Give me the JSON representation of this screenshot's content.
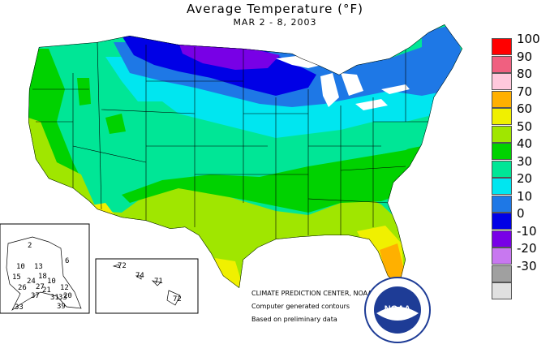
{
  "title": "Average Temperature (°F)",
  "subtitle": "MAR 2 - 8, 2003",
  "legend": [
    {
      "label": "100",
      "color": "#ff0000"
    },
    {
      "label": "90",
      "color": "#f06080"
    },
    {
      "label": "80",
      "color": "#ffc8dc"
    },
    {
      "label": "70",
      "color": "#ffb000"
    },
    {
      "label": "60",
      "color": "#f0f000"
    },
    {
      "label": "50",
      "color": "#a0e600"
    },
    {
      "label": "40",
      "color": "#00d200"
    },
    {
      "label": "30",
      "color": "#00e696"
    },
    {
      "label": "20",
      "color": "#00e6f0"
    },
    {
      "label": "10",
      "color": "#1e78e6"
    },
    {
      "label": "0",
      "color": "#0000e6"
    },
    {
      "label": "-10",
      "color": "#7800e6"
    },
    {
      "label": "-20",
      "color": "#c878f0"
    },
    {
      "label": "-30",
      "color": "#a0a0a0"
    },
    {
      "label": "",
      "color": "#e0e0e0"
    }
  ],
  "credits": {
    "line1": "CLIMATE PREDICTION CENTER, NOAA",
    "line2": "Computer generated contours",
    "line3": "Based on preliminary data"
  },
  "logo_text": "NOAA",
  "alaska_values": [
    "2",
    "6",
    "10",
    "13",
    "18",
    "15",
    "24",
    "10",
    "27",
    "26",
    "21",
    "12",
    "37",
    "31",
    "33",
    "33",
    "39",
    "20"
  ],
  "hawaii_values": [
    "72",
    "74",
    "71",
    "72"
  ]
}
